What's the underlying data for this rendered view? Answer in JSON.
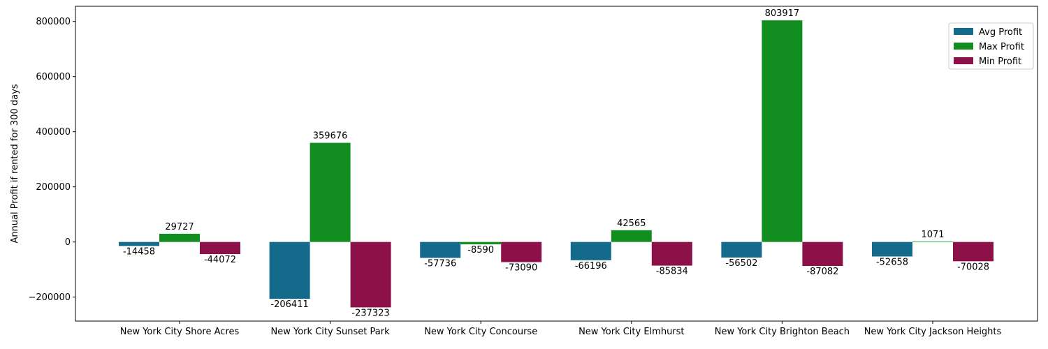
{
  "chart_data": {
    "type": "bar",
    "title": "",
    "xlabel": "",
    "ylabel": "Annual Profit if rented for 300 days",
    "categories": [
      "New York City Shore Acres",
      "New York City Sunset Park",
      "New York City Concourse",
      "New York City Elmhurst",
      "New York City Brighton Beach",
      "New York City Jackson Heights"
    ],
    "series": [
      {
        "name": "Avg Profit",
        "color": "#136a8a",
        "values": [
          -14458,
          -206411,
          -57736,
          -66196,
          -56502,
          -52658
        ]
      },
      {
        "name": "Max Profit",
        "color": "#128d20",
        "values": [
          29727,
          359676,
          -8590,
          42565,
          803917,
          1071
        ]
      },
      {
        "name": "Min Profit",
        "color": "#8b1148",
        "values": [
          -44072,
          -237323,
          -73090,
          -85834,
          -87082,
          -70028
        ]
      }
    ],
    "ylim": [
      -287000,
      855000
    ],
    "yticks": [
      -200000,
      0,
      200000,
      400000,
      600000,
      800000
    ],
    "ytick_labels": [
      "−200000",
      "0",
      "200000",
      "400000",
      "600000",
      "800000"
    ],
    "legend_position": "top-right",
    "grid": false
  }
}
